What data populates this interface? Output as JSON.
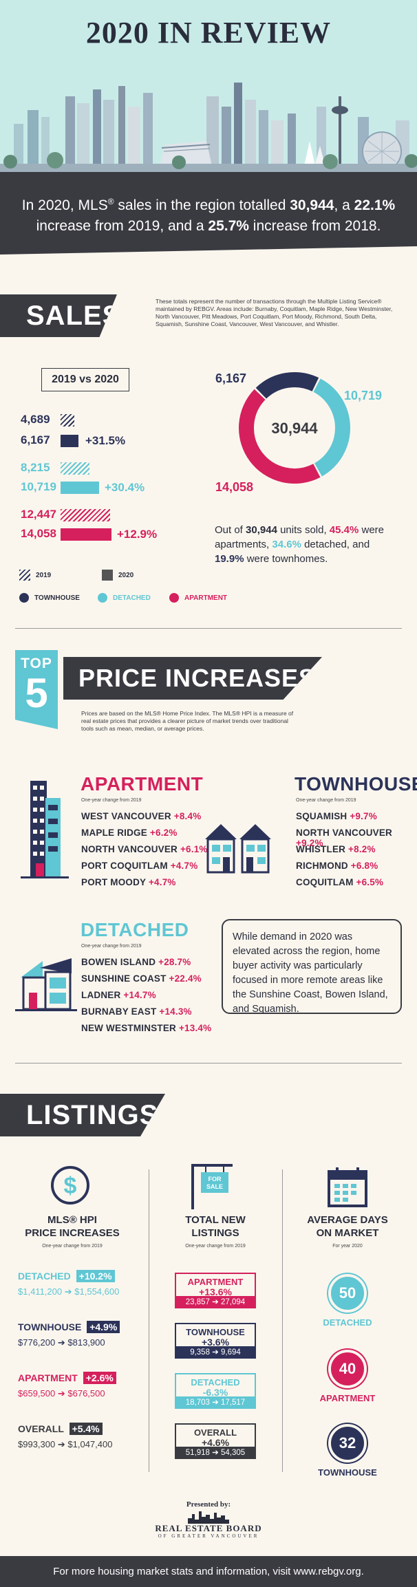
{
  "header": {
    "title": "2020 IN REVIEW",
    "banner_line1_pre": "In 2020, MLS",
    "banner_reg": "®",
    "banner_line1_mid": " sales in the region totalled ",
    "banner_total": "30,944",
    "banner_line1_mid2": ", a ",
    "banner_pct1": "22.1%",
    "banner_line2_pre": "increase from 2019, and a ",
    "banner_pct2": "25.7%",
    "banner_line2_post": " increase from 2018."
  },
  "sales": {
    "heading": "SALES",
    "note": "These totals represent the number of transactions through the Multiple Listing Service® maintained by REBGV. Areas include: Burnaby, Coquitlam, Maple Ridge, New Westminster, North Vancouver, Pitt Meadows, Port Coquitlam, Port Moody, Richmond, South Delta, Squamish, Sunshine Coast, Vancouver, West Vancouver, and Whistler.",
    "compare_label": "2019 vs 2020",
    "rows": [
      {
        "v2019": "4,689",
        "v2020": "6,167",
        "change": "+31.5%"
      },
      {
        "v2019": "8,215",
        "v2020": "10,719",
        "change": "+30.4%"
      },
      {
        "v2019": "12,447",
        "v2020": "14,058",
        "change": "+12.9%"
      }
    ],
    "legend_2019": "2019",
    "legend_2020": "2020",
    "legend_townhouse": "TOWNHOUSE",
    "legend_detached": "DETACHED",
    "legend_apartment": "APARTMENT",
    "donut_total": "30,944",
    "donut_townhouse": "6,167",
    "donut_detached": "10,719",
    "donut_apartment": "14,058",
    "summary_pre": "Out of ",
    "summary_total": "30,944",
    "summary_mid1": " units sold, ",
    "summary_apt_pct": "45.4%",
    "summary_mid2": " were apartments, ",
    "summary_det_pct": "34.6%",
    "summary_mid3": " detached, and ",
    "summary_th_pct": "19.9%",
    "summary_post": " were townhomes."
  },
  "chart_data": {
    "type": "pie",
    "categories": [
      "TOWNHOUSE",
      "DETACHED",
      "APARTMENT"
    ],
    "values": [
      6167,
      10719,
      14058
    ],
    "title": "",
    "bar_series": [
      {
        "name": "2019",
        "values": [
          4689,
          8215,
          12447
        ]
      },
      {
        "name": "2020",
        "values": [
          6167,
          10719,
          14058
        ]
      }
    ]
  },
  "price": {
    "top_label": "TOP",
    "top_number": "5",
    "heading": "PRICE INCREASES",
    "note": "Prices are based on the MLS® Home Price Index. The MLS® HPI is a measure of real estate prices that provides a clearer picture of market trends over traditional tools such as mean, median, or average prices.",
    "sub": "One-year change from 2019",
    "apartment": {
      "title": "APARTMENT",
      "items": [
        {
          "name": "WEST VANCOUVER",
          "pct": "+8.4%"
        },
        {
          "name": "MAPLE RIDGE",
          "pct": "+6.2%"
        },
        {
          "name": "NORTH VANCOUVER",
          "pct": "+6.1%"
        },
        {
          "name": "PORT COQUITLAM",
          "pct": "+4.7%"
        },
        {
          "name": "PORT MOODY",
          "pct": "+4.7%"
        }
      ]
    },
    "townhouse": {
      "title": "TOWNHOUSE",
      "items": [
        {
          "name": "SQUAMISH",
          "pct": "+9.7%"
        },
        {
          "name": "NORTH VANCOUVER",
          "pct": "+9.2%"
        },
        {
          "name": "WHISTLER",
          "pct": "+8.2%"
        },
        {
          "name": "RICHMOND",
          "pct": "+6.8%"
        },
        {
          "name": "COQUITLAM",
          "pct": "+6.5%"
        }
      ]
    },
    "detached": {
      "title": "DETACHED",
      "items": [
        {
          "name": "BOWEN ISLAND",
          "pct": "+28.7%"
        },
        {
          "name": "SUNSHINE COAST",
          "pct": "+22.4%"
        },
        {
          "name": "LADNER",
          "pct": "+14.7%"
        },
        {
          "name": "BURNABY EAST",
          "pct": "+14.3%"
        },
        {
          "name": "NEW WESTMINSTER",
          "pct": "+13.4%"
        }
      ]
    },
    "callout": "While demand in 2020 was elevated across the region, home buyer activity was particularly focused in more remote areas like the Sunshine Coast, Bowen Island, and Squamish."
  },
  "listings": {
    "heading": "LISTINGS",
    "col1_title_1": "MLS® HPI",
    "col1_title_2": "PRICE INCREASES",
    "col1_sub": "One-year change from 2019",
    "hpi": [
      {
        "label": "DETACHED",
        "pct": "+10.2%",
        "from": "$1,411,200",
        "to": "$1,554,600"
      },
      {
        "label": "TOWNHOUSE",
        "pct": "+4.9%",
        "from": "$776,200",
        "to": "$813,900"
      },
      {
        "label": "APARTMENT",
        "pct": "+2.6%",
        "from": "$659,500",
        "to": "$676,500"
      },
      {
        "label": "OVERALL",
        "pct": "+5.4%",
        "from": "$993,300",
        "to": "$1,047,400"
      }
    ],
    "sign_text_1": "FOR",
    "sign_text_2": "SALE",
    "col2_title_1": "TOTAL NEW",
    "col2_title_2": "LISTINGS",
    "col2_sub": "One-year change from 2019",
    "new": [
      {
        "label": "APARTMENT",
        "pct": "+13.6%",
        "from": "23,857",
        "to": "27,094"
      },
      {
        "label": "TOWNHOUSE",
        "pct": "+3.6%",
        "from": "9,358",
        "to": "9,694"
      },
      {
        "label": "DETACHED",
        "pct": "-6.3%",
        "from": "18,703",
        "to": "17,517"
      },
      {
        "label": "OVERALL",
        "pct": "+4.6%",
        "from": "51,918",
        "to": "54,305"
      }
    ],
    "col3_title_1": "AVERAGE DAYS",
    "col3_title_2": "ON MARKET",
    "col3_sub": "For year 2020",
    "days": [
      {
        "value": "50",
        "label": "DETACHED"
      },
      {
        "value": "40",
        "label": "APARTMENT"
      },
      {
        "value": "32",
        "label": "TOWNHOUSE"
      }
    ],
    "arrow": "➔"
  },
  "presented": {
    "label": "Presented by:",
    "logo_line1": "REAL ESTATE BOARD",
    "logo_line2": "OF GREATER VANCOUVER"
  },
  "footer": {
    "text": "For more housing market stats and information, visit www.rebgv.org."
  },
  "colors": {
    "navy": "#2c3359",
    "teal": "#5fc6d3",
    "pink": "#d5205d",
    "dark": "#3a3b41",
    "cream": "#faf6ee"
  }
}
